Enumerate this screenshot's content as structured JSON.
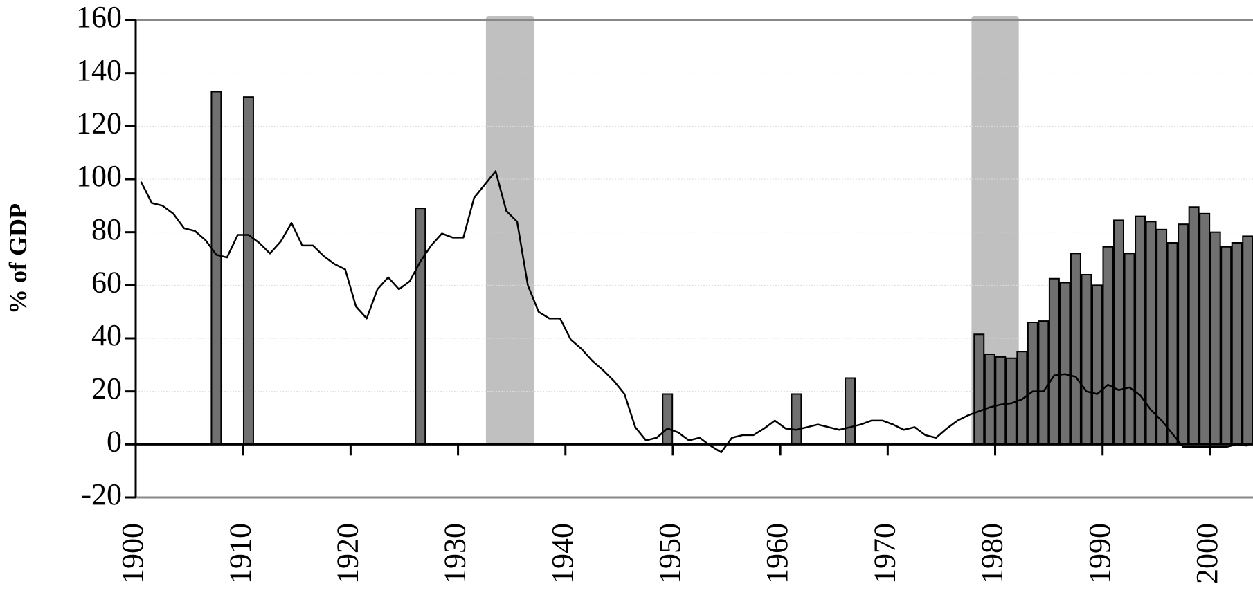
{
  "chart_data": {
    "type": "combo",
    "y_label": "% of GDP",
    "xlim": [
      1900,
      2004
    ],
    "xticks": [
      1900,
      1910,
      1920,
      1930,
      1940,
      1950,
      1960,
      1970,
      1980,
      1990,
      2000
    ],
    "ylim": [
      -20,
      160
    ],
    "yticks": [
      -20,
      0,
      20,
      40,
      60,
      80,
      100,
      120,
      140,
      160
    ],
    "grid": true,
    "shaded_periods": [
      [
        1932.6,
        1937.1
      ],
      [
        1977.8,
        1982.2
      ]
    ],
    "shade_color": "#c0c0c0",
    "series": [
      {
        "type": "bar",
        "color": "#707070",
        "x": [
          1907.5,
          1910.5,
          1926.5,
          1949.5,
          1961.5,
          1966.5,
          1978.5,
          1979.5,
          1980.5,
          1981.5,
          1982.5,
          1983.5,
          1984.5,
          1985.5,
          1986.5,
          1987.5,
          1988.5,
          1989.5,
          1990.5,
          1991.5,
          1992.5,
          1993.5,
          1994.5,
          1995.5,
          1996.5,
          1997.5,
          1998.5,
          1999.5,
          2000.5,
          2001.5,
          2002.5,
          2003.5
        ],
        "values": [
          133,
          131,
          89,
          19,
          19,
          25,
          41.5,
          34,
          33,
          32.5,
          35,
          46,
          46.5,
          62.5,
          61,
          72,
          64,
          60,
          74.5,
          84.5,
          72,
          86,
          84,
          81,
          76,
          83,
          89.5,
          87,
          80,
          74.5,
          76,
          78.5
        ]
      },
      {
        "type": "line",
        "color": "#000000",
        "x": [
          1900.5,
          1901.5,
          1902.5,
          1903.5,
          1904.5,
          1905.5,
          1906.5,
          1907.5,
          1908.5,
          1909.5,
          1910.5,
          1911.5,
          1912.5,
          1913.5,
          1914.5,
          1915.5,
          1916.5,
          1917.5,
          1918.5,
          1919.5,
          1920.5,
          1921.5,
          1922.5,
          1923.5,
          1924.5,
          1925.5,
          1926.5,
          1927.5,
          1928.5,
          1929.5,
          1930.5,
          1931.5,
          1932.5,
          1933.5,
          1934.5,
          1935.5,
          1936.5,
          1937.5,
          1938.5,
          1939.5,
          1940.5,
          1941.5,
          1942.5,
          1943.5,
          1944.5,
          1945.5,
          1946.5,
          1947.5,
          1948.5,
          1949.5,
          1950.5,
          1951.5,
          1952.5,
          1953.5,
          1954.5,
          1955.5,
          1956.5,
          1957.5,
          1958.5,
          1959.5,
          1960.5,
          1961.5,
          1962.5,
          1963.5,
          1964.5,
          1965.5,
          1966.5,
          1967.5,
          1968.5,
          1969.5,
          1970.5,
          1971.5,
          1972.5,
          1973.5,
          1974.5,
          1975.5,
          1976.5,
          1977.5,
          1978.5,
          1979.5,
          1980.5,
          1981.5,
          1982.5,
          1983.5,
          1984.5,
          1985.5,
          1986.5,
          1987.5,
          1988.5,
          1989.5,
          1990.5,
          1991.5,
          1992.5,
          1993.5,
          1994.5,
          1995.5,
          1996.5,
          1997.5,
          1998.5,
          1999.5,
          2000.5,
          2001.5,
          2002.5,
          2003.5
        ],
        "values": [
          99,
          91,
          90,
          87,
          81.5,
          80.5,
          77,
          71.5,
          70.5,
          79,
          79,
          76,
          72,
          76.5,
          83.5,
          75,
          75,
          71,
          68,
          66,
          52,
          47.5,
          58.5,
          63,
          58.5,
          61.5,
          69,
          75,
          79.5,
          78,
          78,
          93,
          98,
          103,
          88,
          84,
          60,
          50,
          47.5,
          47.5,
          39.5,
          36,
          31.5,
          28,
          24,
          19,
          6.5,
          1.5,
          2.5,
          6,
          4.5,
          1.5,
          2.5,
          -0.5,
          -3,
          2.5,
          3.5,
          3.5,
          6,
          9,
          6,
          5.5,
          6.5,
          7.5,
          6.5,
          5.5,
          6.5,
          7.5,
          9,
          9,
          7.5,
          5.5,
          6.5,
          3.5,
          2.5,
          6,
          9,
          11,
          12.5,
          14,
          15,
          15.5,
          17,
          20,
          20,
          26,
          26.5,
          25.5,
          20,
          19,
          22.5,
          20.5,
          21.5,
          18.5,
          13,
          9,
          4,
          -1,
          -1,
          -1,
          -1,
          -1,
          0,
          -0.5
        ]
      }
    ]
  }
}
